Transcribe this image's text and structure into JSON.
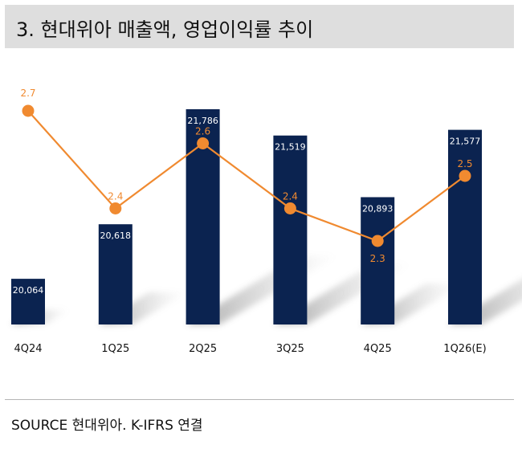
{
  "title": "3. 현대위아 매출액, 영업이익률 추이",
  "source": "SOURCE 현대위아. K-IFRS 연결",
  "colors": {
    "bar": "#0b2350",
    "line": "#f08a30",
    "shadow": "#9a9a9a",
    "title_bg": "#dedede"
  },
  "chart_data": {
    "type": "bar",
    "categories": [
      "4Q24",
      "1Q25",
      "2Q25",
      "3Q25",
      "4Q25",
      "1Q26(E)"
    ],
    "series": [
      {
        "type": "bar",
        "values": [
          20064,
          20618,
          21786,
          21519,
          20893,
          21577
        ],
        "labels": [
          "20,064",
          "20,618",
          "21,786",
          "21,519",
          "20,893",
          "21,577"
        ]
      },
      {
        "type": "line",
        "values": [
          2.7,
          2.4,
          2.6,
          2.4,
          2.3,
          2.5
        ],
        "labels": [
          "2.7",
          "2.4",
          "2.6",
          "2.4",
          "2.3",
          "2.5"
        ]
      }
    ],
    "grid": false,
    "legend": "none"
  }
}
